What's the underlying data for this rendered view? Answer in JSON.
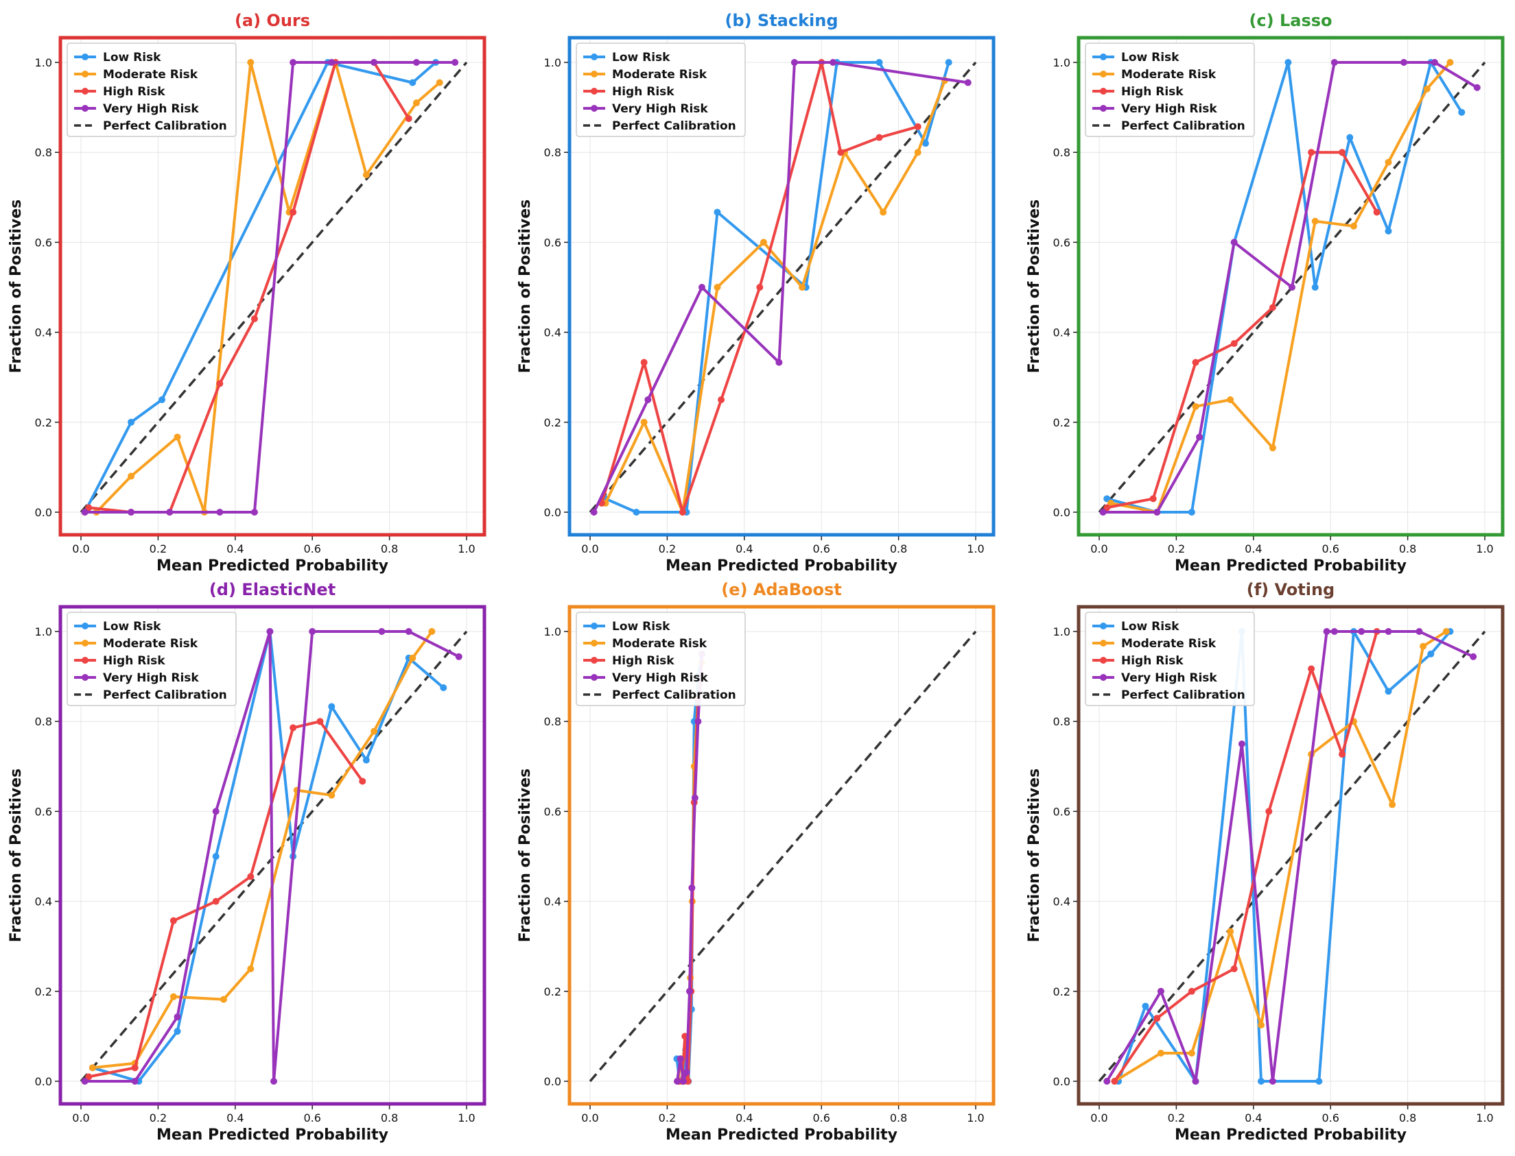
{
  "colors": {
    "low": "#3399ee",
    "moderate": "#f8a020",
    "high": "#ee4444",
    "very_high": "#9933bb",
    "perfect": "#333333"
  },
  "legend_labels": [
    "Low Risk",
    "Moderate Risk",
    "High Risk",
    "Very High Risk",
    "Perfect Calibration"
  ],
  "chart_data": [
    {
      "type": "line",
      "title": "(a) Ours",
      "title_color": "#dd3333",
      "frame_color": "#dd3333",
      "xlabel": "Mean Predicted Probability",
      "ylabel": "Fraction of Positives",
      "xlim": [
        0,
        1
      ],
      "ylim": [
        0,
        1
      ],
      "xticks": [
        "0.0",
        "0.2",
        "0.4",
        "0.6",
        "0.8",
        "1.0"
      ],
      "yticks": [
        "0.0",
        "0.2",
        "0.4",
        "0.6",
        "0.8",
        "1.0"
      ],
      "grid": true,
      "legend_position": "upper-left",
      "series": [
        {
          "name": "Low Risk",
          "x": [
            0.01,
            0.13,
            0.21,
            0.64,
            0.86,
            0.92
          ],
          "y": [
            0.0,
            0.2,
            0.25,
            1.0,
            0.955,
            1.0
          ]
        },
        {
          "name": "Moderate Risk",
          "x": [
            0.01,
            0.04,
            0.13,
            0.25,
            0.32,
            0.44,
            0.54,
            0.66,
            0.74,
            0.87,
            0.93
          ],
          "y": [
            0.0,
            0.0,
            0.08,
            0.167,
            0.0,
            1.0,
            0.667,
            1.0,
            0.75,
            0.91,
            0.955
          ]
        },
        {
          "name": "High Risk",
          "x": [
            0.02,
            0.13,
            0.23,
            0.36,
            0.45,
            0.55,
            0.66,
            0.76,
            0.85
          ],
          "y": [
            0.01,
            0.0,
            0.0,
            0.286,
            0.43,
            0.667,
            1.0,
            1.0,
            0.875
          ]
        },
        {
          "name": "Very High Risk",
          "x": [
            0.01,
            0.13,
            0.23,
            0.36,
            0.45,
            0.55,
            0.65,
            0.76,
            0.87,
            0.97
          ],
          "y": [
            0.0,
            0.0,
            0.0,
            0.0,
            0.0,
            1.0,
            1.0,
            1.0,
            1.0,
            1.0
          ]
        }
      ]
    },
    {
      "type": "line",
      "title": "(b) Stacking",
      "title_color": "#2080d8",
      "frame_color": "#2080d8",
      "xlabel": "Mean Predicted Probability",
      "ylabel": "Fraction of Positives",
      "xlim": [
        0,
        1
      ],
      "ylim": [
        0,
        1
      ],
      "xticks": [
        "0.0",
        "0.2",
        "0.4",
        "0.6",
        "0.8",
        "1.0"
      ],
      "yticks": [
        "0.0",
        "0.2",
        "0.4",
        "0.6",
        "0.8",
        "1.0"
      ],
      "grid": true,
      "legend_position": "upper-left",
      "series": [
        {
          "name": "Low Risk",
          "x": [
            0.04,
            0.12,
            0.25,
            0.33,
            0.56,
            0.64,
            0.75,
            0.87,
            0.93
          ],
          "y": [
            0.03,
            0.0,
            0.0,
            0.667,
            0.5,
            1.0,
            1.0,
            0.82,
            1.0
          ]
        },
        {
          "name": "Moderate Risk",
          "x": [
            0.04,
            0.14,
            0.24,
            0.33,
            0.45,
            0.55,
            0.66,
            0.76,
            0.85,
            0.92
          ],
          "y": [
            0.02,
            0.2,
            0.0,
            0.5,
            0.6,
            0.5,
            0.8,
            0.667,
            0.8,
            0.96
          ]
        },
        {
          "name": "High Risk",
          "x": [
            0.03,
            0.14,
            0.24,
            0.34,
            0.44,
            0.6,
            0.65,
            0.75,
            0.85
          ],
          "y": [
            0.02,
            0.333,
            0.0,
            0.25,
            0.5,
            1.0,
            0.8,
            0.833,
            0.857
          ]
        },
        {
          "name": "Very High Risk",
          "x": [
            0.01,
            0.15,
            0.29,
            0.49,
            0.53,
            0.63,
            0.98
          ],
          "y": [
            0.0,
            0.25,
            0.5,
            0.333,
            1.0,
            1.0,
            0.955
          ]
        }
      ]
    },
    {
      "type": "line",
      "title": "(c) Lasso",
      "title_color": "#339933",
      "frame_color": "#339933",
      "xlabel": "Mean Predicted Probability",
      "ylabel": "Fraction of Positives",
      "xlim": [
        0,
        1
      ],
      "ylim": [
        0,
        1
      ],
      "xticks": [
        "0.0",
        "0.2",
        "0.4",
        "0.6",
        "0.8",
        "1.0"
      ],
      "yticks": [
        "0.0",
        "0.2",
        "0.4",
        "0.6",
        "0.8",
        "1.0"
      ],
      "grid": true,
      "legend_position": "upper-left",
      "series": [
        {
          "name": "Low Risk",
          "x": [
            0.02,
            0.15,
            0.24,
            0.35,
            0.49,
            0.56,
            0.65,
            0.75,
            0.86,
            0.94
          ],
          "y": [
            0.03,
            0.0,
            0.0,
            0.6,
            1.0,
            0.5,
            0.833,
            0.625,
            1.0,
            0.889
          ]
        },
        {
          "name": "Moderate Risk",
          "x": [
            0.03,
            0.15,
            0.25,
            0.34,
            0.45,
            0.56,
            0.66,
            0.75,
            0.85,
            0.91
          ],
          "y": [
            0.02,
            0.0,
            0.235,
            0.25,
            0.143,
            0.647,
            0.636,
            0.778,
            0.941,
            1.0
          ]
        },
        {
          "name": "High Risk",
          "x": [
            0.02,
            0.14,
            0.25,
            0.35,
            0.45,
            0.55,
            0.63,
            0.72
          ],
          "y": [
            0.01,
            0.03,
            0.333,
            0.375,
            0.455,
            0.8,
            0.8,
            0.667
          ]
        },
        {
          "name": "Very High Risk",
          "x": [
            0.01,
            0.15,
            0.26,
            0.35,
            0.5,
            0.61,
            0.79,
            0.87,
            0.98
          ],
          "y": [
            0.0,
            0.0,
            0.167,
            0.6,
            0.5,
            1.0,
            1.0,
            1.0,
            0.944
          ]
        }
      ]
    },
    {
      "type": "line",
      "title": "(d) ElasticNet",
      "title_color": "#8822aa",
      "frame_color": "#8822aa",
      "xlabel": "Mean Predicted Probability",
      "ylabel": "Fraction of Positives",
      "xlim": [
        0,
        1
      ],
      "ylim": [
        0,
        1
      ],
      "xticks": [
        "0.0",
        "0.2",
        "0.4",
        "0.6",
        "0.8",
        "1.0"
      ],
      "yticks": [
        "0.0",
        "0.2",
        "0.4",
        "0.6",
        "0.8",
        "1.0"
      ],
      "grid": true,
      "legend_position": "upper-left",
      "series": [
        {
          "name": "Low Risk",
          "x": [
            0.03,
            0.15,
            0.25,
            0.35,
            0.49,
            0.55,
            0.65,
            0.74,
            0.85,
            0.94
          ],
          "y": [
            0.03,
            0.0,
            0.111,
            0.5,
            1.0,
            0.5,
            0.833,
            0.714,
            0.941,
            0.875
          ]
        },
        {
          "name": "Moderate Risk",
          "x": [
            0.03,
            0.14,
            0.24,
            0.37,
            0.44,
            0.56,
            0.65,
            0.76,
            0.86,
            0.91
          ],
          "y": [
            0.03,
            0.04,
            0.188,
            0.182,
            0.25,
            0.647,
            0.636,
            0.778,
            0.941,
            1.0
          ]
        },
        {
          "name": "High Risk",
          "x": [
            0.02,
            0.14,
            0.24,
            0.35,
            0.44,
            0.55,
            0.62,
            0.73
          ],
          "y": [
            0.01,
            0.03,
            0.357,
            0.4,
            0.455,
            0.786,
            0.8,
            0.667
          ]
        },
        {
          "name": "Very High Risk",
          "x": [
            0.01,
            0.14,
            0.25,
            0.35,
            0.49,
            0.5,
            0.6,
            0.78,
            0.85,
            0.98
          ],
          "y": [
            0.0,
            0.0,
            0.143,
            0.6,
            1.0,
            0.0,
            1.0,
            1.0,
            1.0,
            0.944
          ]
        }
      ]
    },
    {
      "type": "line",
      "title": "(e) AdaBoost",
      "title_color": "#f08820",
      "frame_color": "#f08820",
      "xlabel": "Mean Predicted Probability",
      "ylabel": "Fraction of Positives",
      "xlim": [
        0,
        1
      ],
      "ylim": [
        0,
        1
      ],
      "xticks": [
        "0.0",
        "0.2",
        "0.4",
        "0.6",
        "0.8",
        "1.0"
      ],
      "yticks": [
        "0.0",
        "0.2",
        "0.4",
        "0.6",
        "0.8",
        "1.0"
      ],
      "grid": true,
      "legend_position": "upper-left",
      "series": [
        {
          "name": "Low Risk",
          "x": [
            0.225,
            0.232,
            0.24,
            0.248,
            0.255,
            0.263,
            0.27,
            0.28,
            0.29
          ],
          "y": [
            0.05,
            0.0,
            0.0,
            0.07,
            0.0,
            0.16,
            0.8,
            0.9,
            0.95
          ]
        },
        {
          "name": "Moderate Risk",
          "x": [
            0.228,
            0.236,
            0.244,
            0.252,
            0.26,
            0.265,
            0.27,
            0.28,
            0.29
          ],
          "y": [
            0.0,
            0.05,
            0.0,
            0.0,
            0.23,
            0.4,
            0.7,
            0.85,
            0.93
          ]
        },
        {
          "name": "High Risk",
          "x": [
            0.23,
            0.238,
            0.246,
            0.254,
            0.262,
            0.27,
            0.28,
            0.29
          ],
          "y": [
            0.0,
            0.0,
            0.1,
            0.0,
            0.2,
            0.62,
            0.85,
            0.9
          ]
        },
        {
          "name": "Very High Risk",
          "x": [
            0.226,
            0.234,
            0.242,
            0.25,
            0.258,
            0.264,
            0.272,
            0.28,
            0.29
          ],
          "y": [
            0.0,
            0.05,
            0.0,
            0.02,
            0.2,
            0.43,
            0.63,
            0.8,
            0.95
          ]
        }
      ]
    },
    {
      "type": "line",
      "title": "(f) Voting",
      "title_color": "#6b4030",
      "frame_color": "#6b4030",
      "xlabel": "Mean Predicted Probability",
      "ylabel": "Fraction of Positives",
      "xlim": [
        0,
        1
      ],
      "ylim": [
        0,
        1
      ],
      "xticks": [
        "0.0",
        "0.2",
        "0.4",
        "0.6",
        "0.8",
        "1.0"
      ],
      "yticks": [
        "0.0",
        "0.2",
        "0.4",
        "0.6",
        "0.8",
        "1.0"
      ],
      "grid": true,
      "legend_position": "upper-left",
      "series": [
        {
          "name": "Low Risk",
          "x": [
            0.05,
            0.12,
            0.25,
            0.37,
            0.42,
            0.57,
            0.66,
            0.75,
            0.86,
            0.91
          ],
          "y": [
            0.0,
            0.167,
            0.0,
            1.0,
            0.0,
            0.0,
            1.0,
            0.867,
            0.95,
            1.0
          ]
        },
        {
          "name": "Moderate Risk",
          "x": [
            0.04,
            0.16,
            0.24,
            0.34,
            0.42,
            0.55,
            0.66,
            0.76,
            0.84,
            0.9
          ],
          "y": [
            0.0,
            0.0625,
            0.0625,
            0.333,
            0.125,
            0.727,
            0.8,
            0.615,
            0.967,
            1.0
          ]
        },
        {
          "name": "High Risk",
          "x": [
            0.04,
            0.15,
            0.24,
            0.35,
            0.44,
            0.55,
            0.63,
            0.72
          ],
          "y": [
            0.0,
            0.14,
            0.2,
            0.25,
            0.6,
            0.917,
            0.727,
            1.0
          ]
        },
        {
          "name": "Very High Risk",
          "x": [
            0.02,
            0.16,
            0.25,
            0.37,
            0.45,
            0.59,
            0.61,
            0.68,
            0.75,
            0.83,
            0.97
          ],
          "y": [
            0.0,
            0.2,
            0.0,
            0.75,
            0.0,
            1.0,
            1.0,
            1.0,
            1.0,
            1.0,
            0.944
          ]
        }
      ]
    }
  ]
}
